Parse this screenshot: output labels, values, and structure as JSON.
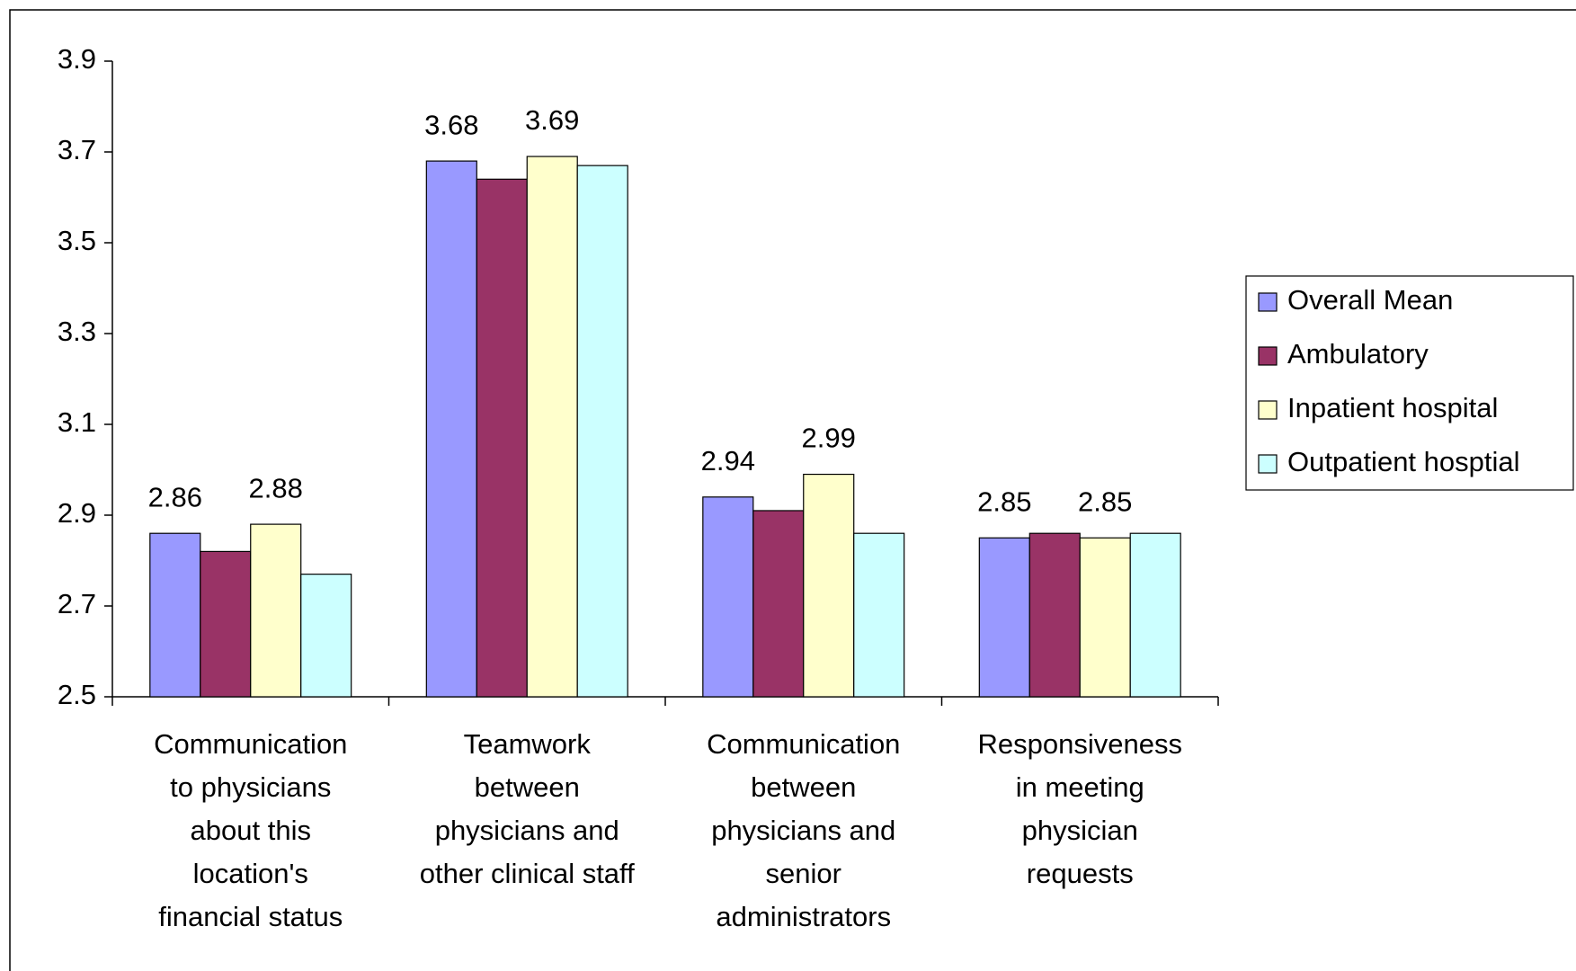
{
  "chart_data": {
    "type": "bar",
    "categories": [
      "Communication\nto physicians\nabout this\nlocation's\nfinancial status",
      "Teamwork\nbetween\nphysicians and\nother clinical staff",
      "Communication\nbetween\nphysicians and\nsenior\nadministrators",
      "Responsiveness\nin meeting\nphysician\nrequests"
    ],
    "series": [
      {
        "name": "Overall Mean",
        "color": "#9999ff",
        "values": [
          2.86,
          3.68,
          2.94,
          2.85
        ],
        "show_labels": true
      },
      {
        "name": "Ambulatory",
        "color": "#993366",
        "values": [
          2.82,
          3.64,
          2.91,
          2.86
        ],
        "show_labels": false
      },
      {
        "name": "Inpatient hospital",
        "color": "#ffffcc",
        "values": [
          2.88,
          3.69,
          2.99,
          2.85
        ],
        "show_labels": true
      },
      {
        "name": "Outpatient hosptial",
        "color": "#ccffff",
        "values": [
          2.77,
          3.67,
          2.86,
          2.86
        ],
        "show_labels": false
      }
    ],
    "ylim": [
      2.5,
      3.9
    ],
    "yticks": [
      2.5,
      2.7,
      2.9,
      3.1,
      3.3,
      3.5,
      3.7,
      3.9
    ],
    "grid": false,
    "legend": "right"
  }
}
